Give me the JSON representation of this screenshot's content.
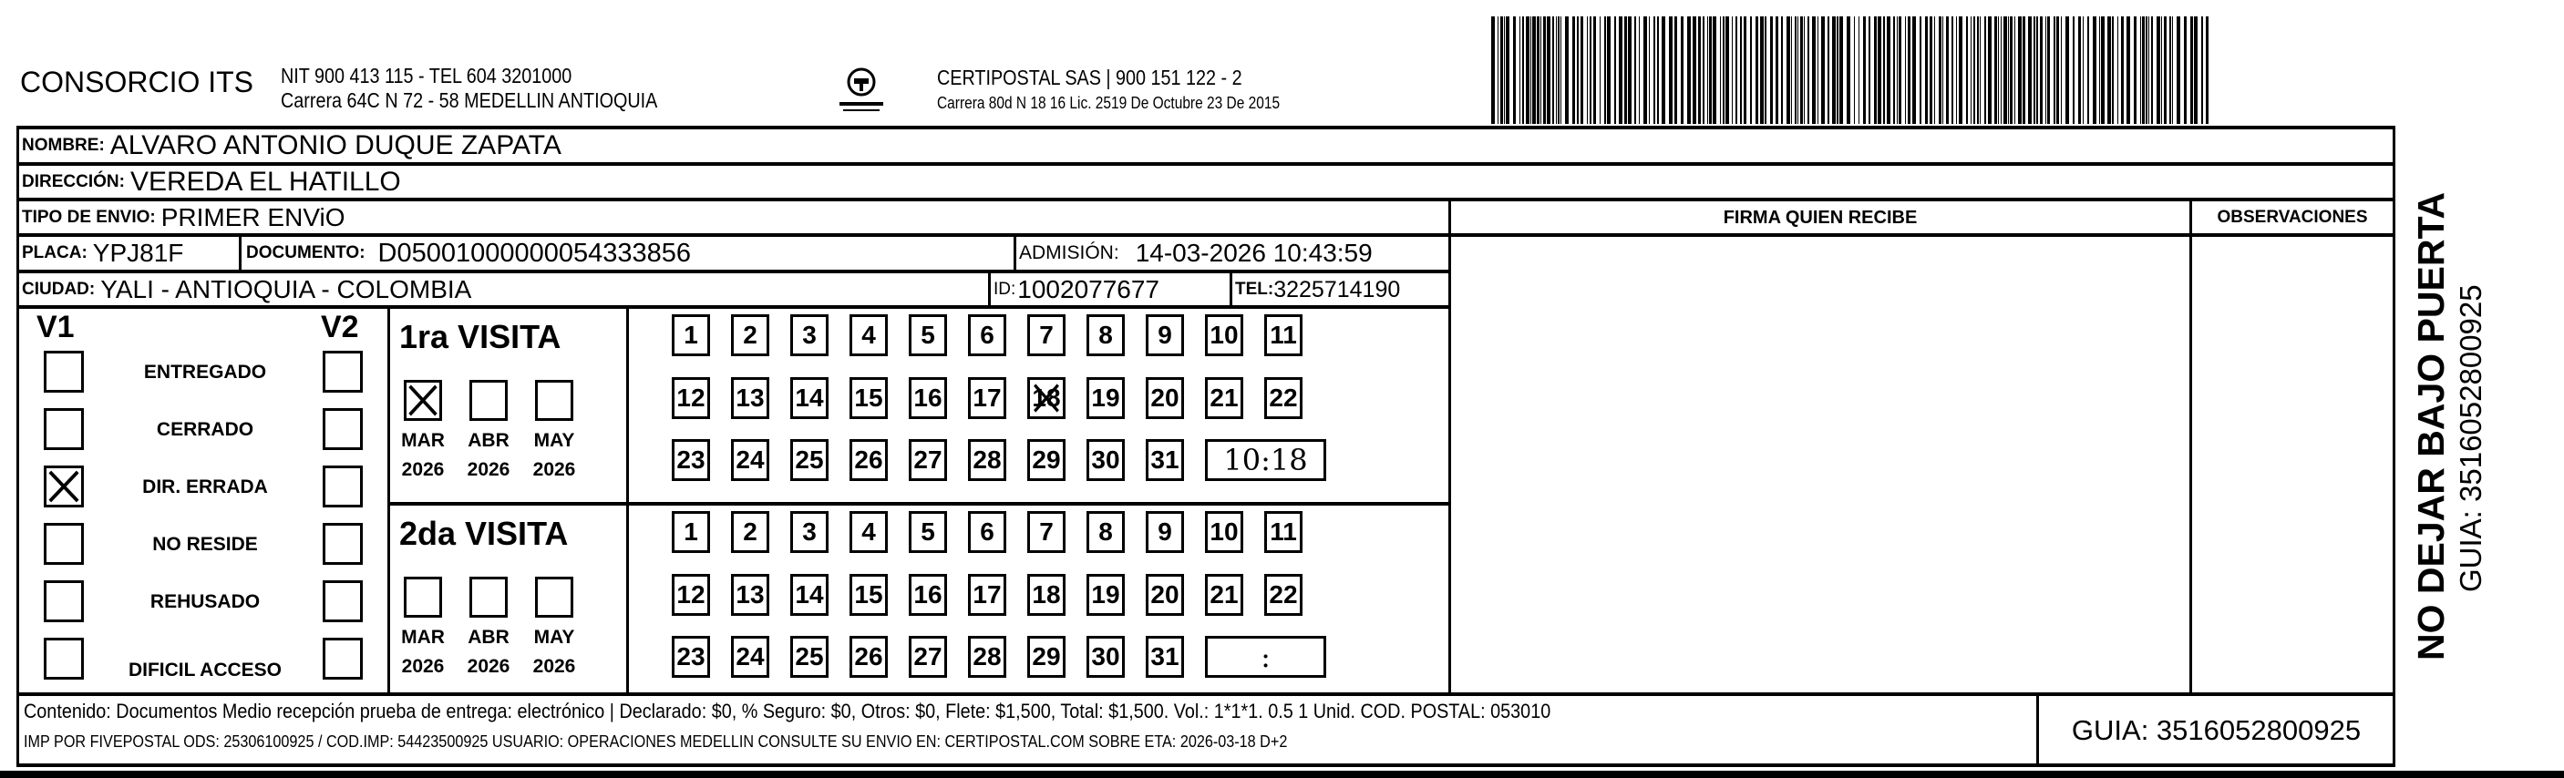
{
  "header": {
    "company": "CONSORCIO ITS",
    "company_line1": "NIT 900 413 115 - TEL 604 3201000",
    "company_line2": "Carrera 64C N 72 - 58 MEDELLIN ANTIOQUIA",
    "logo_text": "CERTIPOSTAL",
    "carrier_line1": "CERTIPOSTAL SAS | 900 151 122 - 2",
    "carrier_line2": "Carrera 80d N 18 16  Lic. 2519 De Octubre 23 De 2015",
    "barcode_value": "3516052800925"
  },
  "fields": {
    "nombre_label": "NOMBRE:",
    "nombre": "ALVARO ANTONIO DUQUE ZAPATA",
    "direccion_label": "DIRECCIÓN:",
    "direccion": "VEREDA EL HATILLO",
    "tipo_label": "TIPO DE ENVIO:",
    "tipo": "PRIMER ENViO",
    "placa_label": "PLACA:",
    "placa": "YPJ81F",
    "documento_label": "DOCUMENTO:",
    "documento": "D05001000000054333856",
    "admision_label": "ADMISIÓN:",
    "admision": "14-03-2026 10:43:59",
    "ciudad_label": "CIUDAD:",
    "ciudad": "YALI - ANTIOQUIA - COLOMBIA",
    "id_label": "ID:",
    "id": "1002077677",
    "tel_label": "TEL:",
    "tel": "3225714190",
    "firma_header": "FIRMA QUIEN RECIBE",
    "observaciones_header": "OBSERVACIONES"
  },
  "status": {
    "v1_label": "V1",
    "v2_label": "V2",
    "options": [
      {
        "label": "ENTREGADO",
        "v1": false,
        "v2": false
      },
      {
        "label": "CERRADO",
        "v1": false,
        "v2": false
      },
      {
        "label": "DIR. ERRADA",
        "v1": true,
        "v2": false
      },
      {
        "label": "NO RESIDE",
        "v1": false,
        "v2": false
      },
      {
        "label": "REHUSADO",
        "v1": false,
        "v2": false
      },
      {
        "label": "DIFICIL ACCESO",
        "v1": false,
        "v2": false
      }
    ]
  },
  "visits": [
    {
      "title": "1ra VISITA",
      "months": [
        {
          "month": "MAR",
          "year": "2026",
          "checked": true
        },
        {
          "month": "ABR",
          "year": "2026",
          "checked": false
        },
        {
          "month": "MAY",
          "year": "2026",
          "checked": false
        }
      ],
      "days": [
        1,
        2,
        3,
        4,
        5,
        6,
        7,
        8,
        9,
        10,
        11,
        12,
        13,
        14,
        15,
        16,
        17,
        18,
        19,
        20,
        21,
        22,
        23,
        24,
        25,
        26,
        27,
        28,
        29,
        30,
        31
      ],
      "marked_day": 18,
      "time": "10:18"
    },
    {
      "title": "2da VISITA",
      "months": [
        {
          "month": "MAR",
          "year": "2026",
          "checked": false
        },
        {
          "month": "ABR",
          "year": "2026",
          "checked": false
        },
        {
          "month": "MAY",
          "year": "2026",
          "checked": false
        }
      ],
      "days": [
        1,
        2,
        3,
        4,
        5,
        6,
        7,
        8,
        9,
        10,
        11,
        12,
        13,
        14,
        15,
        16,
        17,
        18,
        19,
        20,
        21,
        22,
        23,
        24,
        25,
        26,
        27,
        28,
        29,
        30,
        31
      ],
      "marked_day": null,
      "time": ":"
    }
  ],
  "footer": {
    "line1": "Contenido: Documentos Medio recepción prueba de entrega: electrónico | Declarado: $0, % Seguro: $0, Otros: $0, Flete: $1,500, Total: $1,500. Vol.: 1*1*1. 0.5  1 Unid. COD. POSTAL: 053010",
    "line2": "IMP POR FIVEPOSTAL ODS: 25306100925 / COD.IMP: 54423500925 USUARIO: OPERACIONES MEDELLIN CONSULTE SU ENVIO EN: CERTIPOSTAL.COM SOBRE ETA: 2026-03-18 D+2",
    "guia": "GUIA: 3516052800925"
  },
  "side": {
    "warning": "NO DEJAR BAJO PUERTA",
    "guia": "GUIA: 3516052800925"
  }
}
